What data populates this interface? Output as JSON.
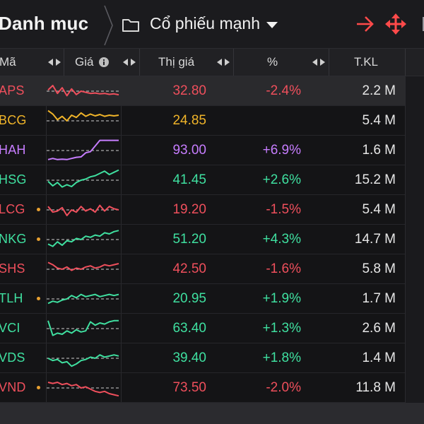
{
  "header": {
    "title": "Danh mục",
    "list_name": "Cổ phiếu mạnh"
  },
  "columns": {
    "symbol": "Mã",
    "spark": "Giá",
    "price": "Thị giá",
    "change": "%",
    "volume": "T.KL"
  },
  "colors": {
    "up": "#3fe0a0",
    "down": "#ef4f5c",
    "reference": "#f0b429",
    "ceiling": "#c77dff",
    "accent": "#ff4a4a"
  },
  "rows": [
    {
      "symbol": "APS",
      "dot": false,
      "price": "32.80",
      "change": "-2.4%",
      "volume": "2.2 M",
      "trend": "down",
      "selected": true,
      "spark": [
        0.45,
        0.25,
        0.6,
        0.35,
        0.7,
        0.4,
        0.65,
        0.5,
        0.55,
        0.6,
        0.58,
        0.62,
        0.6,
        0.64,
        0.62,
        0.66
      ]
    },
    {
      "symbol": "BCG",
      "dot": false,
      "price": "24.85",
      "change": "",
      "volume": "5.4 M",
      "trend": "reference",
      "selected": false,
      "spark": [
        0.05,
        0.2,
        0.45,
        0.3,
        0.5,
        0.25,
        0.35,
        0.15,
        0.3,
        0.2,
        0.28,
        0.22,
        0.3,
        0.25,
        0.28,
        0.25
      ]
    },
    {
      "symbol": "HAH",
      "dot": false,
      "price": "93.00",
      "change": "+6.9%",
      "volume": "1.6 M",
      "trend": "ceiling",
      "selected": false,
      "spark": [
        0.9,
        0.85,
        0.9,
        0.88,
        0.9,
        0.85,
        0.8,
        0.78,
        0.6,
        0.55,
        0.3,
        0.05,
        0.05,
        0.05,
        0.05,
        0.05
      ]
    },
    {
      "symbol": "HSG",
      "dot": false,
      "price": "41.45",
      "change": "+2.6%",
      "volume": "15.2 M",
      "trend": "up",
      "selected": false,
      "spark": [
        0.55,
        0.75,
        0.6,
        0.8,
        0.7,
        0.78,
        0.6,
        0.5,
        0.45,
        0.35,
        0.3,
        0.2,
        0.1,
        0.25,
        0.15,
        0.05
      ]
    },
    {
      "symbol": "LCG",
      "dot": true,
      "price": "19.20",
      "change": "-1.5%",
      "volume": "5.4 M",
      "trend": "down",
      "selected": false,
      "spark": [
        0.35,
        0.6,
        0.55,
        0.4,
        0.75,
        0.5,
        0.6,
        0.35,
        0.55,
        0.45,
        0.6,
        0.3,
        0.55,
        0.35,
        0.45,
        0.5
      ]
    },
    {
      "symbol": "NKG",
      "dot": true,
      "price": "51.20",
      "change": "+4.3%",
      "volume": "14.7 M",
      "trend": "up",
      "selected": false,
      "spark": [
        0.7,
        0.8,
        0.6,
        0.75,
        0.55,
        0.6,
        0.45,
        0.5,
        0.35,
        0.4,
        0.3,
        0.35,
        0.2,
        0.25,
        0.15,
        0.1
      ]
    },
    {
      "symbol": "SHS",
      "dot": false,
      "price": "42.50",
      "change": "-1.6%",
      "volume": "5.8 M",
      "trend": "down",
      "selected": false,
      "spark": [
        0.2,
        0.3,
        0.45,
        0.5,
        0.4,
        0.55,
        0.45,
        0.5,
        0.4,
        0.35,
        0.45,
        0.4,
        0.3,
        0.35,
        0.3,
        0.25
      ]
    },
    {
      "symbol": "TLH",
      "dot": true,
      "price": "20.95",
      "change": "+1.9%",
      "volume": "1.7 M",
      "trend": "up",
      "selected": false,
      "spark": [
        0.7,
        0.6,
        0.65,
        0.55,
        0.5,
        0.35,
        0.45,
        0.3,
        0.4,
        0.35,
        0.3,
        0.4,
        0.35,
        0.3,
        0.35,
        0.3
      ]
    },
    {
      "symbol": "VCI",
      "dot": false,
      "price": "63.40",
      "change": "+1.3%",
      "volume": "2.6 M",
      "trend": "up",
      "selected": false,
      "spark": [
        0.15,
        0.8,
        0.7,
        0.75,
        0.6,
        0.7,
        0.55,
        0.65,
        0.6,
        0.2,
        0.35,
        0.25,
        0.3,
        0.2,
        0.15,
        0.15
      ]
    },
    {
      "symbol": "VDS",
      "dot": false,
      "price": "39.40",
      "change": "+1.8%",
      "volume": "1.4 M",
      "trend": "up",
      "selected": false,
      "spark": [
        0.5,
        0.6,
        0.55,
        0.7,
        0.65,
        0.85,
        0.75,
        0.6,
        0.55,
        0.45,
        0.5,
        0.35,
        0.45,
        0.4,
        0.35,
        0.4
      ]
    },
    {
      "symbol": "VND",
      "dot": true,
      "price": "73.50",
      "change": "-2.0%",
      "volume": "11.8 M",
      "trend": "down",
      "selected": false,
      "spark": [
        0.25,
        0.3,
        0.25,
        0.35,
        0.3,
        0.4,
        0.35,
        0.5,
        0.45,
        0.55,
        0.65,
        0.7,
        0.65,
        0.75,
        0.8,
        0.85
      ]
    }
  ]
}
